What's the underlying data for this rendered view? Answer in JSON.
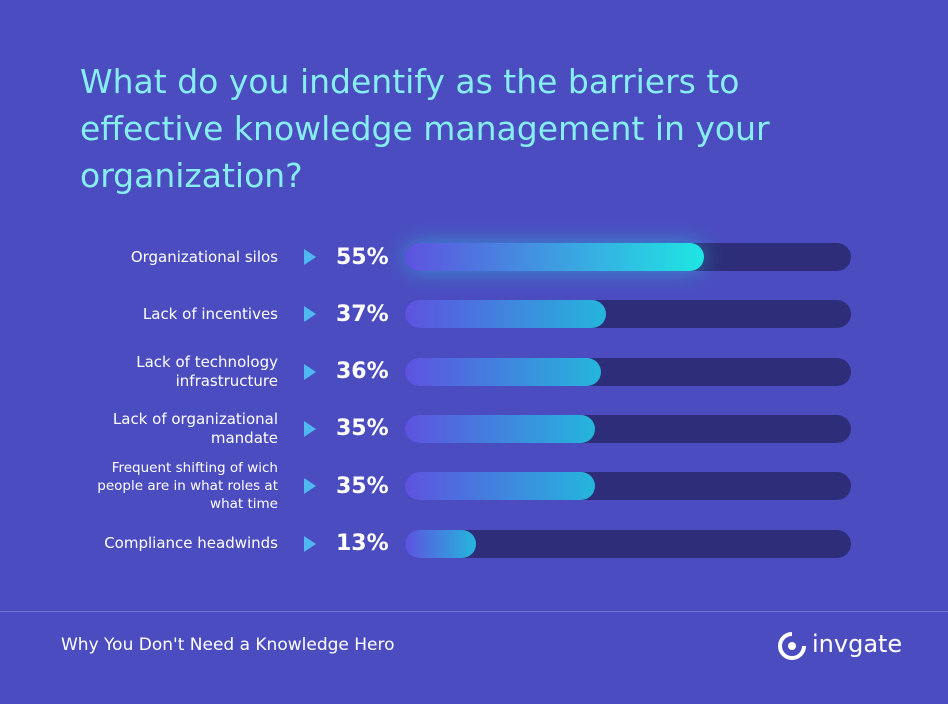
{
  "chart_data": {
    "type": "bar",
    "orientation": "horizontal",
    "title": "What do you indentify as the barriers to effective knowledge management in your organization?",
    "categories": [
      "Organizational silos",
      "Lack of incentives",
      "Lack of technology infrastructure",
      "Lack of organizational mandate",
      "Frequent shifting of wich people are in what roles at what time",
      "Compliance headwinds"
    ],
    "values": [
      55,
      37,
      36,
      35,
      35,
      13
    ],
    "value_labels": [
      "55%",
      "37%",
      "36%",
      "35%",
      "35%",
      "13%"
    ],
    "xlim": [
      0,
      82
    ]
  },
  "footer": {
    "text": "Why You Don't Need a Knowledge Hero",
    "brand": "invgate"
  }
}
